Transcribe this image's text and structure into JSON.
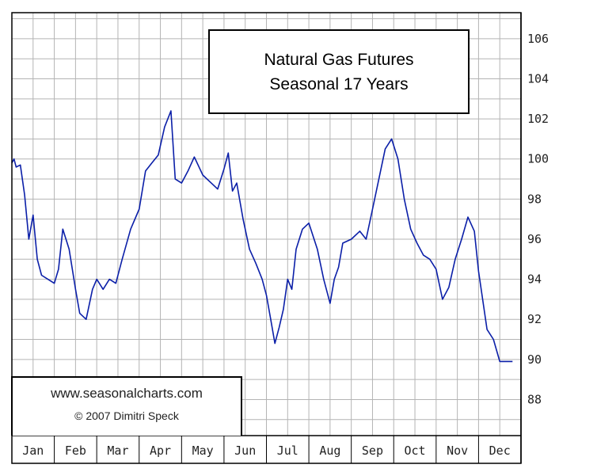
{
  "chart_data": {
    "type": "line",
    "title": [
      "Natural Gas Futures",
      "Seasonal 17 Years"
    ],
    "xlabel": "",
    "ylabel": "",
    "months": [
      "Jan",
      "Feb",
      "Mar",
      "Apr",
      "May",
      "Jun",
      "Jul",
      "Aug",
      "Sep",
      "Oct",
      "Nov",
      "Dec"
    ],
    "yticks": [
      88,
      90,
      92,
      94,
      96,
      98,
      100,
      102,
      104,
      106
    ],
    "ylim": [
      86.2,
      107.3
    ],
    "grid": true,
    "line_color": "#0b1fa8",
    "x": [
      0,
      0.05,
      0.1,
      0.2,
      0.3,
      0.4,
      0.5,
      0.6,
      0.7,
      0.85,
      1.0,
      1.1,
      1.2,
      1.35,
      1.5,
      1.6,
      1.75,
      1.9,
      2.0,
      2.15,
      2.3,
      2.45,
      2.6,
      2.8,
      3.0,
      3.15,
      3.3,
      3.45,
      3.6,
      3.75,
      3.85,
      4.0,
      4.15,
      4.3,
      4.5,
      4.7,
      4.85,
      5.0,
      5.1,
      5.2,
      5.3,
      5.45,
      5.6,
      5.75,
      5.9,
      6.0,
      6.1,
      6.2,
      6.3,
      6.4,
      6.5,
      6.6,
      6.7,
      6.85,
      7.0,
      7.2,
      7.35,
      7.5,
      7.6,
      7.7,
      7.8,
      8.0,
      8.2,
      8.35,
      8.5,
      8.65,
      8.8,
      8.95,
      9.1,
      9.25,
      9.4,
      9.55,
      9.7,
      9.85,
      10.0,
      10.15,
      10.3,
      10.45,
      10.6,
      10.75,
      10.9,
      11.0,
      11.2,
      11.35,
      11.5,
      11.6,
      11.7,
      11.8
    ],
    "values": [
      99.8,
      100.0,
      99.6,
      99.7,
      98.2,
      96.0,
      97.2,
      95.0,
      94.2,
      94.0,
      93.8,
      94.5,
      96.5,
      95.5,
      93.5,
      92.3,
      92.0,
      93.5,
      94.0,
      93.5,
      94.0,
      93.8,
      95.0,
      96.5,
      97.5,
      99.4,
      99.8,
      100.2,
      101.6,
      102.4,
      99.0,
      98.8,
      99.4,
      100.1,
      99.2,
      98.8,
      98.5,
      99.5,
      100.3,
      98.4,
      98.8,
      97.0,
      95.5,
      94.8,
      94.0,
      93.2,
      92.0,
      90.8,
      91.6,
      92.5,
      94.0,
      93.5,
      95.5,
      96.5,
      96.8,
      95.5,
      94.0,
      92.8,
      94.0,
      94.6,
      95.8,
      96.0,
      96.4,
      96.0,
      97.5,
      99.0,
      100.5,
      101.0,
      100.0,
      98.0,
      96.5,
      95.8,
      95.2,
      95.0,
      94.5,
      93.0,
      93.6,
      95.0,
      96.0,
      97.1,
      96.4,
      94.4,
      91.5,
      91.0,
      89.9,
      89.9,
      89.9,
      89.9
    ]
  },
  "credit": {
    "url": "www.seasonalcharts.com",
    "author": "© 2007   Dimitri Speck"
  }
}
